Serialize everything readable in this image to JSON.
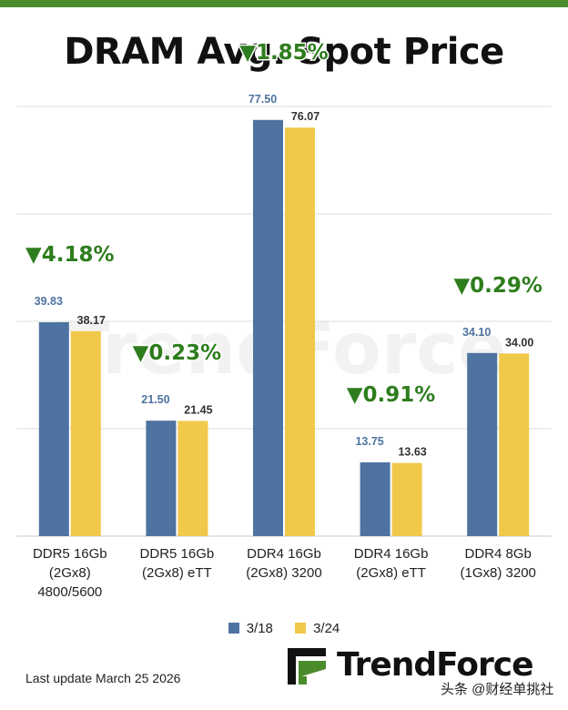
{
  "chart_data": {
    "type": "bar",
    "title": "DRAM Avg. Spot Price",
    "categories": [
      [
        "DDR5 16Gb",
        "(2Gx8)",
        "4800/5600"
      ],
      [
        "DDR5 16Gb",
        "(2Gx8) eTT"
      ],
      [
        "DDR4 16Gb",
        "(2Gx8) 3200"
      ],
      [
        "DDR4 16Gb",
        "(2Gx8) eTT"
      ],
      [
        "DDR4 8Gb",
        "(1Gx8) 3200"
      ]
    ],
    "series": [
      {
        "name": "3/18",
        "color": "#4e73a0",
        "values": [
          39.83,
          21.5,
          77.5,
          13.75,
          34.1
        ],
        "labels": [
          "39.83",
          "21.50",
          "77.50",
          "13.75",
          "34.10"
        ]
      },
      {
        "name": "3/24",
        "color": "#f0c84a",
        "values": [
          38.17,
          21.45,
          76.07,
          13.63,
          34.0
        ],
        "labels": [
          "38.17",
          "21.45",
          "76.07",
          "13.63",
          "34.00"
        ]
      }
    ],
    "changes": [
      "▼4.18%",
      "▼0.23%",
      "▼1.85%",
      "▼0.91%",
      "▼0.29%"
    ],
    "ylim": [
      0,
      80
    ],
    "grid": true,
    "legend_position": "bottom"
  },
  "watermark_text": "TrendForce",
  "footer": {
    "last_update": "Last update  March 25 2026"
  },
  "logo": {
    "text": "TrendForce"
  },
  "corner_watermark": "头条 @财经单挑社",
  "colors": {
    "accent_green": "#4a8b2c",
    "change_green": "#2e7d1e",
    "series1_label": "#4e73a0",
    "series2_label": "#333333"
  }
}
